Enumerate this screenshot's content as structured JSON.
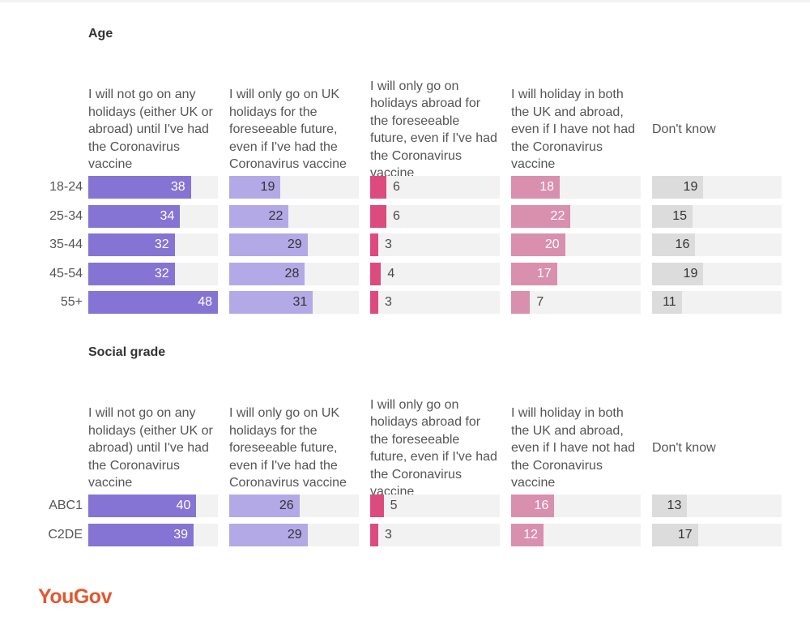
{
  "brand": {
    "logo_text": "YouGov"
  },
  "chart_data": [
    {
      "type": "bar",
      "orientation": "horizontal",
      "title": "Age",
      "xlim": [
        0,
        48
      ],
      "grid": false,
      "series": [
        {
          "name": "I will not go on any holidays (either UK or abroad) until I've had the Coronavirus vaccine",
          "color": "#8574d3",
          "values": [
            38,
            34,
            32,
            32,
            48
          ]
        },
        {
          "name": "I will only go on UK holidays for the foreseeable future, even if I've had the Coronavirus vaccine",
          "color": "#b3a9e6",
          "values": [
            19,
            22,
            29,
            28,
            31
          ]
        },
        {
          "name": "I will only go on holidays abroad for the foreseeable future, even if I've had the Coronavirus vaccine",
          "color": "#dc4a7e",
          "values": [
            6,
            6,
            3,
            4,
            3
          ]
        },
        {
          "name": "I will holiday in both the UK and abroad, even if I have not had the Coronavirus vaccine",
          "color": "#d98fae",
          "values": [
            18,
            22,
            20,
            17,
            7
          ]
        },
        {
          "name": "Don't know",
          "color": "#dcdcdc",
          "values": [
            19,
            15,
            16,
            19,
            11
          ]
        }
      ],
      "categories": [
        "18-24",
        "25-34",
        "35-44",
        "45-54",
        "55+"
      ]
    },
    {
      "type": "bar",
      "orientation": "horizontal",
      "title": "Social grade",
      "xlim": [
        0,
        48
      ],
      "grid": false,
      "series": [
        {
          "name": "I will not go on any holidays (either UK or abroad) until I've had the Coronavirus vaccine",
          "color": "#8574d3",
          "values": [
            40,
            39
          ]
        },
        {
          "name": "I will only go on UK holidays for the foreseeable future, even if I've had the Coronavirus vaccine",
          "color": "#b3a9e6",
          "values": [
            26,
            29
          ]
        },
        {
          "name": "I will only go on holidays abroad for the foreseeable future, even if I've had the Coronavirus vaccine",
          "color": "#dc4a7e",
          "values": [
            5,
            3
          ]
        },
        {
          "name": "I will holiday in both the UK and abroad, even if I have not had the Coronavirus vaccine",
          "color": "#d98fae",
          "values": [
            16,
            12
          ]
        },
        {
          "name": "Don't know",
          "color": "#dcdcdc",
          "values": [
            13,
            17
          ]
        }
      ],
      "categories": [
        "ABC1",
        "C2DE"
      ]
    }
  ]
}
